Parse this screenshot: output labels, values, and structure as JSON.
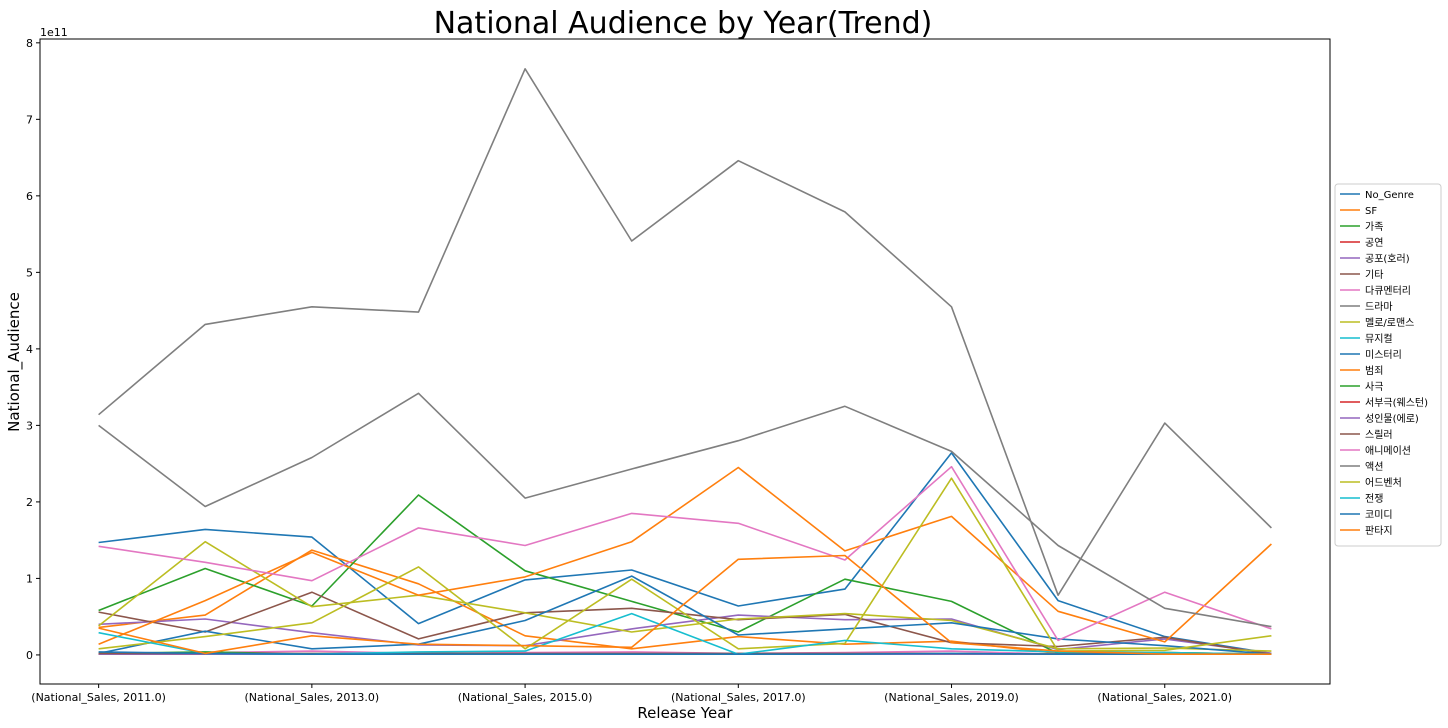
{
  "chart_data": {
    "type": "line",
    "title": "National Audience by Year(Trend)",
    "xlabel": "Release Year",
    "ylabel": "National_Audience",
    "y_scale_label": "1e11",
    "x": [
      2011,
      2012,
      2013,
      2014,
      2015,
      2016,
      2017,
      2018,
      2019,
      2020,
      2021,
      2022
    ],
    "x_tick_labels": [
      {
        "x": 2011,
        "label": "(National_Sales, 2011.0)"
      },
      {
        "x": 2013,
        "label": "(National_Sales, 2013.0)"
      },
      {
        "x": 2015,
        "label": "(National_Sales, 2015.0)"
      },
      {
        "x": 2017,
        "label": "(National_Sales, 2017.0)"
      },
      {
        "x": 2019,
        "label": "(National_Sales, 2019.0)"
      },
      {
        "x": 2021,
        "label": "(National_Sales, 2021.0)"
      }
    ],
    "y_ticks": [
      0,
      1,
      2,
      3,
      4,
      5,
      6,
      7,
      8
    ],
    "ylim": [
      -0.38,
      8.05
    ],
    "xlim": [
      2010.45,
      2022.55
    ],
    "grid": false,
    "legend_position": "center-right",
    "series": [
      {
        "name": "No_Genre",
        "color": "#1f77b4",
        "values": [
          1.47,
          1.64,
          1.54,
          0.41,
          0.98,
          1.11,
          0.64,
          0.86,
          2.64,
          0.71,
          0.24,
          0.02
        ]
      },
      {
        "name": "SF",
        "color": "#ff7f0e",
        "values": [
          0.36,
          0.52,
          1.37,
          0.93,
          0.25,
          0.08,
          0.24,
          0.14,
          0.18,
          0.02,
          0.03,
          0.01
        ]
      },
      {
        "name": "가족",
        "color": "#2ca02c",
        "values": [
          0.58,
          1.13,
          0.64,
          2.09,
          1.1,
          0.7,
          0.3,
          0.99,
          0.7,
          0.02,
          0.03,
          0.01
        ]
      },
      {
        "name": "공연",
        "color": "#d62728",
        "values": [
          0.01,
          0.01,
          0.01,
          0.01,
          0.01,
          0.01,
          0.01,
          0.01,
          0.01,
          0.01,
          0.01,
          0.01
        ]
      },
      {
        "name": "공포(호러)",
        "color": "#9467bd",
        "values": [
          0.4,
          0.47,
          0.29,
          0.13,
          0.12,
          0.34,
          0.52,
          0.46,
          0.47,
          0.07,
          0.21,
          0.02
        ]
      },
      {
        "name": "기타",
        "color": "#8c564b",
        "values": [
          0.56,
          0.3,
          0.82,
          0.21,
          0.55,
          0.61,
          0.46,
          0.53,
          0.16,
          0.11,
          0.23,
          0.01
        ]
      },
      {
        "name": "다큐멘터리",
        "color": "#e377c2",
        "values": [
          0.02,
          0.03,
          0.05,
          0.02,
          0.03,
          0.04,
          0.02,
          0.03,
          0.05,
          0.01,
          0.01,
          0.01
        ]
      },
      {
        "name": "드라마",
        "color": "#7f7f7f",
        "values": [
          3.14,
          4.32,
          4.55,
          4.48,
          7.66,
          5.41,
          6.46,
          5.79,
          4.55,
          0.78,
          3.03,
          1.66
        ]
      },
      {
        "name": "멜로/로맨스",
        "color": "#bcbd22",
        "values": [
          0.38,
          1.48,
          0.63,
          0.78,
          0.55,
          0.3,
          0.47,
          0.54,
          0.45,
          0.08,
          0.09,
          0.05
        ]
      },
      {
        "name": "뮤지컬",
        "color": "#17becf",
        "values": [
          0.01,
          0.01,
          0.01,
          0.01,
          0.01,
          0.01,
          0.01,
          0.01,
          0.01,
          0.01,
          0.01,
          0.01
        ]
      },
      {
        "name": "미스터리",
        "color": "#1f77b4",
        "values": [
          0.02,
          0.31,
          0.08,
          0.14,
          0.45,
          1.03,
          0.26,
          0.34,
          0.42,
          0.21,
          0.12,
          0.01
        ]
      },
      {
        "name": "범죄",
        "color": "#ff7f0e",
        "values": [
          0.14,
          0.71,
          1.34,
          0.78,
          1.02,
          1.48,
          2.45,
          1.36,
          1.81,
          0.57,
          0.17,
          1.45
        ]
      },
      {
        "name": "사극",
        "color": "#2ca02c",
        "values": [
          0.02,
          0.04,
          0.01,
          0.01,
          0.01,
          0.01,
          0.01,
          0.01,
          0.01,
          0.01,
          0.01,
          0.01
        ]
      },
      {
        "name": "서부극(웨스턴)",
        "color": "#d62728",
        "values": [
          0.01,
          0.01,
          0.01,
          0.01,
          0.01,
          0.01,
          0.01,
          0.01,
          0.01,
          0.01,
          0.01,
          0.01
        ]
      },
      {
        "name": "성인물(에로)",
        "color": "#9467bd",
        "values": [
          0.01,
          0.01,
          0.01,
          0.01,
          0.01,
          0.01,
          0.01,
          0.01,
          0.01,
          0.01,
          0.01,
          0.01
        ]
      },
      {
        "name": "스릴러",
        "color": "#8c564b",
        "values": [
          0.02,
          0.02,
          0.02,
          0.02,
          0.02,
          0.02,
          0.02,
          0.02,
          0.02,
          0.01,
          0.01,
          0.01
        ]
      },
      {
        "name": "애니메이션",
        "color": "#e377c2",
        "values": [
          1.42,
          1.21,
          0.97,
          1.66,
          1.43,
          1.85,
          1.72,
          1.24,
          2.46,
          0.19,
          0.82,
          0.34
        ]
      },
      {
        "name": "액션",
        "color": "#7f7f7f",
        "values": [
          3.0,
          1.94,
          2.58,
          3.42,
          2.05,
          2.43,
          2.8,
          3.25,
          2.66,
          1.43,
          0.61,
          0.37
        ]
      },
      {
        "name": "어드벤처",
        "color": "#bcbd22",
        "values": [
          0.08,
          0.24,
          0.42,
          1.15,
          0.08,
          0.99,
          0.08,
          0.15,
          2.31,
          0.05,
          0.06,
          0.25
        ]
      },
      {
        "name": "전쟁",
        "color": "#17becf",
        "values": [
          0.29,
          0.02,
          0.01,
          0.04,
          0.05,
          0.54,
          0.01,
          0.19,
          0.08,
          0.04,
          0.03,
          0.01
        ]
      },
      {
        "name": "코미디",
        "color": "#1f77b4",
        "values": [
          0.04,
          0.02,
          0.01,
          0.01,
          0.01,
          0.01,
          0.01,
          0.01,
          0.02,
          0.01,
          0.01,
          0.01
        ]
      },
      {
        "name": "판타지",
        "color": "#ff7f0e",
        "values": [
          0.35,
          0.02,
          0.25,
          0.14,
          0.12,
          0.1,
          1.25,
          1.3,
          0.16,
          0.05,
          0.01,
          0.01
        ]
      }
    ]
  }
}
